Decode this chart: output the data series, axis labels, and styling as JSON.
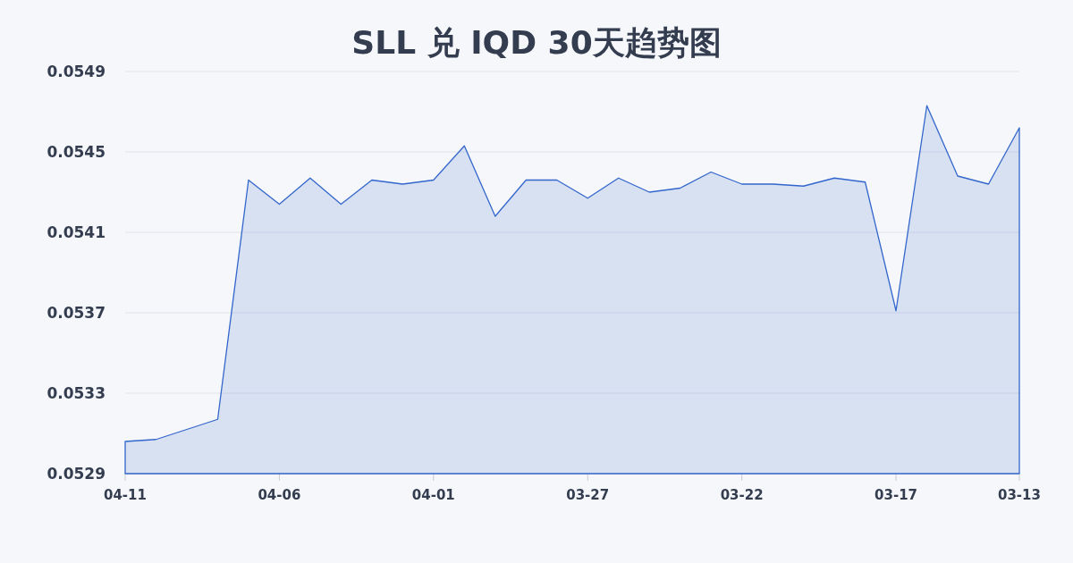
{
  "chart_data": {
    "type": "area",
    "title": "SLL 兑 IQD 30天趋势图",
    "categories": [
      "04-11",
      null,
      null,
      null,
      null,
      "04-06",
      null,
      null,
      null,
      null,
      "04-01",
      null,
      null,
      null,
      null,
      "03-27",
      null,
      null,
      null,
      null,
      "03-22",
      null,
      null,
      null,
      null,
      "03-17",
      null,
      null,
      null,
      "03-13"
    ],
    "values": [
      0.05306,
      0.05307,
      0.05312,
      0.05317,
      0.05436,
      0.05424,
      0.05437,
      0.05424,
      0.05436,
      0.05434,
      0.05436,
      0.05453,
      0.05418,
      0.05436,
      0.05436,
      0.05427,
      0.05437,
      0.0543,
      0.05432,
      0.0544,
      0.05434,
      0.05434,
      0.05433,
      0.05437,
      0.05435,
      0.05371,
      0.05473,
      0.05438,
      0.05434,
      0.05462
    ],
    "color": "#3366cc",
    "ylim": [
      0.0529,
      0.0549
    ],
    "yticks": [
      0.0529,
      0.0533,
      0.0537,
      0.0541,
      0.0545,
      0.0549
    ],
    "grid": "y"
  }
}
